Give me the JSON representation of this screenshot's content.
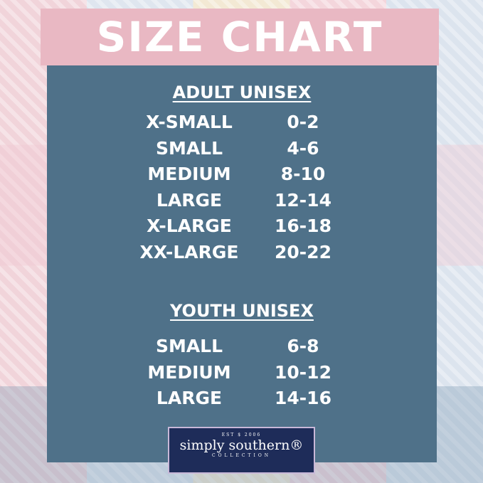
{
  "title": "SIZE CHART",
  "adult": {
    "heading": "ADULT UNISEX",
    "rows": [
      {
        "size": "X-SMALL",
        "range": "0-2"
      },
      {
        "size": "SMALL",
        "range": "4-6"
      },
      {
        "size": "MEDIUM",
        "range": "8-10"
      },
      {
        "size": "LARGE",
        "range": "12-14"
      },
      {
        "size": "X-LARGE",
        "range": "16-18"
      },
      {
        "size": "XX-LARGE",
        "range": "20-22"
      }
    ]
  },
  "youth": {
    "heading": "YOUTH UNISEX",
    "rows": [
      {
        "size": "SMALL",
        "range": "6-8"
      },
      {
        "size": "MEDIUM",
        "range": "10-12"
      },
      {
        "size": "LARGE",
        "range": "14-16"
      }
    ]
  },
  "logo": {
    "est": "EST $ 2006",
    "name": "simply southern®",
    "sub": "COLLECTION"
  },
  "colors": {
    "header": "#e9b8c3",
    "panel": "#4f7189",
    "logo": "#1e2c59"
  }
}
